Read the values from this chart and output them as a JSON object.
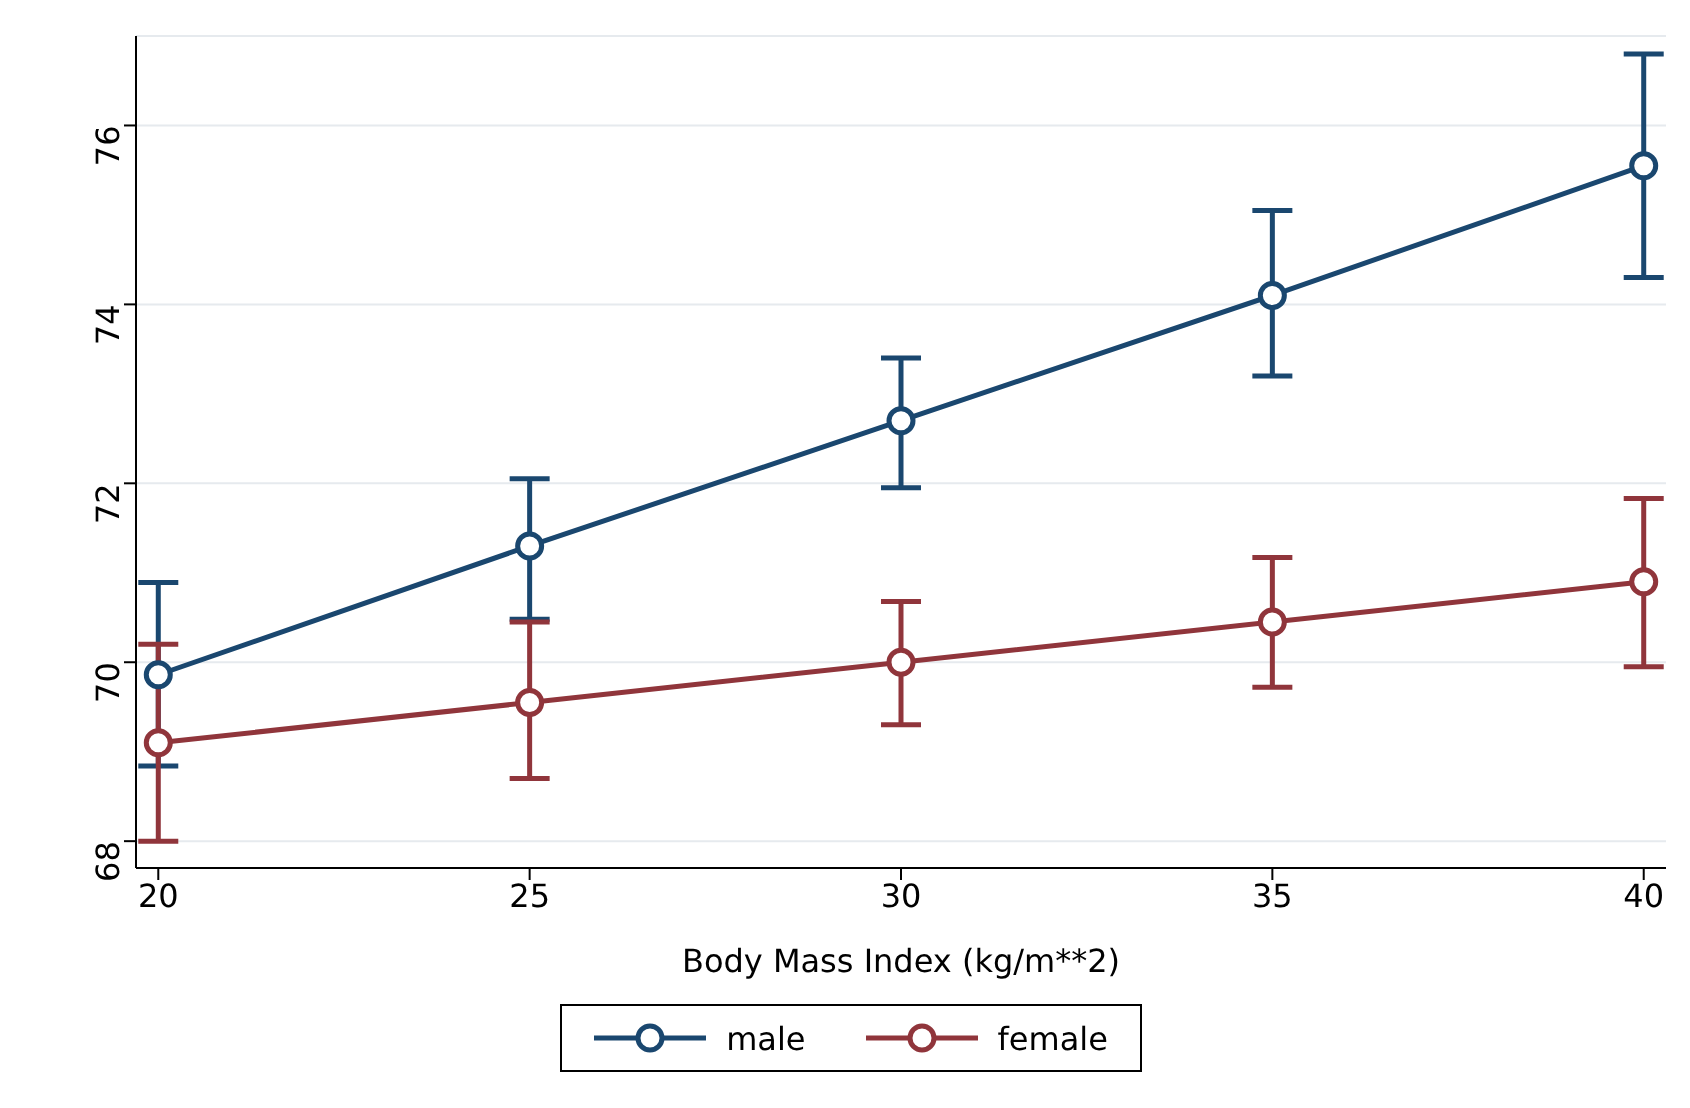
{
  "chart_data": {
    "type": "line",
    "xlabel": "Body Mass Index (kg/m**2)",
    "x": [
      20,
      25,
      30,
      35,
      40
    ],
    "series": [
      {
        "name": "male",
        "color": "#1a476f",
        "values": [
          69.86,
          71.3,
          72.7,
          74.1,
          75.55
        ],
        "errors": [
          [
            68.84,
            70.89
          ],
          [
            70.48,
            72.05
          ],
          [
            71.95,
            73.4
          ],
          [
            73.2,
            75.05
          ],
          [
            74.3,
            76.8
          ]
        ]
      },
      {
        "name": "female",
        "color": "#90353b",
        "values": [
          69.1,
          69.55,
          70.0,
          70.45,
          70.9
        ],
        "errors": [
          [
            68.0,
            70.2
          ],
          [
            68.7,
            70.45
          ],
          [
            69.3,
            70.68
          ],
          [
            69.72,
            71.17
          ],
          [
            69.95,
            71.83
          ]
        ]
      }
    ],
    "xlim": [
      19.7,
      40.3
    ],
    "xticks": [
      20,
      25,
      30,
      35,
      40
    ],
    "ylim": [
      67.7,
      77
    ],
    "yticks": [
      68,
      70,
      72,
      74,
      76
    ],
    "grid": "y",
    "legend": "bottom",
    "marker": "circle",
    "line_style": "solid"
  }
}
